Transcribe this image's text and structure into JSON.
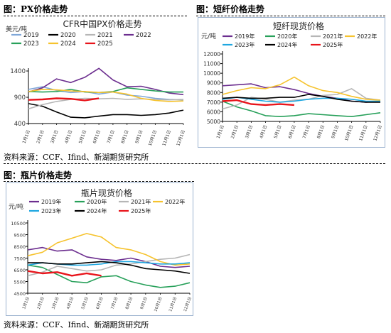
{
  "sections": {
    "px_title": "图：PX价格走势",
    "psf_title": "图：短纤价格走势",
    "bottle_title": "图：瓶片价格走势",
    "source_top": "资料来源：CCF、Ifind、新湖期货研究所",
    "source_bottom": "资料来源：CCF、Ifind、新湖期货研究所"
  },
  "chart_data": [
    {
      "id": "px",
      "type": "line",
      "title": "CFR中国PX价格走势",
      "ylabel": "美元/吨",
      "ylim": [
        400,
        1400
      ],
      "yticks": [
        400,
        900,
        1400
      ],
      "grid": false,
      "legend": "top",
      "x": [
        "1月1日",
        "2月1日",
        "3月1日",
        "4月1日",
        "5月1日",
        "6月1日",
        "7月1日",
        "8月1日",
        "9月1日",
        "10月1日",
        "11月1日",
        "12月1日"
      ],
      "series": [
        {
          "name": "2019",
          "color": "#7fa7d8",
          "values": [
            1050,
            1100,
            1030,
            990,
            1010,
            960,
            1000,
            940,
            920,
            880,
            860,
            850
          ]
        },
        {
          "name": "2020",
          "color": "#000000",
          "values": [
            780,
            730,
            620,
            520,
            510,
            540,
            570,
            570,
            555,
            570,
            600,
            655
          ]
        },
        {
          "name": "2021",
          "color": "#b6b6b6",
          "values": [
            680,
            760,
            820,
            860,
            880,
            870,
            880,
            860,
            870,
            860,
            850,
            860
          ]
        },
        {
          "name": "2022",
          "color": "#6c2e8f",
          "values": [
            1000,
            1080,
            1250,
            1180,
            1280,
            1450,
            1230,
            1100,
            1110,
            1050,
            980,
            950
          ]
        },
        {
          "name": "2023",
          "color": "#27a05a",
          "values": [
            1010,
            1000,
            1010,
            1050,
            1000,
            990,
            1010,
            1080,
            1050,
            1020,
            1000,
            1000
          ]
        },
        {
          "name": "2024",
          "color": "#f6c32e",
          "values": [
            1010,
            1050,
            1040,
            1020,
            1010,
            990,
            1000,
            960,
            880,
            840,
            820,
            830
          ]
        },
        {
          "name": "2025",
          "color": "#e8141b",
          "values": [
            850,
            860,
            880,
            870,
            840,
            880,
            null,
            null,
            null,
            null,
            null,
            null
          ]
        }
      ]
    },
    {
      "id": "psf",
      "type": "line",
      "title": "短纤现货价格",
      "ylabel": "元/吨",
      "ylim": [
        5000,
        12000
      ],
      "yticks": [
        5000,
        6000,
        7000,
        8000,
        9000,
        10000,
        11000,
        12000
      ],
      "grid": false,
      "legend": "top",
      "x": [
        "1月1日",
        "2月1日",
        "3月1日",
        "4月1日",
        "5月1日",
        "6月1日",
        "7月1日",
        "8月1日",
        "9月1日",
        "10月1日",
        "11月1日",
        "12月1日"
      ],
      "series": [
        {
          "name": "2019年",
          "color": "#6c2e8f",
          "values": [
            8700,
            8800,
            8900,
            8500,
            8600,
            8300,
            7900,
            7600,
            7400,
            7100,
            7000,
            7100
          ]
        },
        {
          "name": "2020年",
          "color": "#27a05a",
          "values": [
            7100,
            6500,
            6100,
            5600,
            5500,
            5600,
            5800,
            5700,
            5600,
            5500,
            5700,
            5900
          ]
        },
        {
          "name": "2021年",
          "color": "#b6b6b6",
          "values": [
            6300,
            6700,
            7500,
            7300,
            7000,
            7200,
            7300,
            7700,
            7800,
            8400,
            7400,
            7200
          ]
        },
        {
          "name": "2022年",
          "color": "#f6c32e",
          "values": [
            7800,
            8200,
            8500,
            8400,
            8800,
            9600,
            8700,
            8200,
            8000,
            7600,
            7300,
            7200
          ]
        },
        {
          "name": "2023年",
          "color": "#1fa7e0",
          "values": [
            7300,
            7500,
            7300,
            7100,
            7000,
            7100,
            7300,
            7400,
            7400,
            7300,
            7100,
            7100
          ]
        },
        {
          "name": "2024年",
          "color": "#000000",
          "values": [
            7400,
            7500,
            7400,
            7400,
            7500,
            7500,
            7800,
            7600,
            7300,
            7100,
            7000,
            7000
          ]
        },
        {
          "name": "2025年",
          "color": "#e8141b",
          "values": [
            7100,
            7200,
            6800,
            6700,
            6800,
            6700,
            null,
            null,
            null,
            null,
            null,
            null
          ]
        }
      ]
    },
    {
      "id": "bottle",
      "type": "line",
      "title": "瓶片现货价格",
      "ylabel": "元/吨",
      "ylim": [
        4500,
        10500
      ],
      "yticks": [
        4500,
        5500,
        6500,
        7500,
        8500,
        9500,
        10500
      ],
      "grid": false,
      "legend": "top",
      "x": [
        "1月1日",
        "2月1日",
        "3月1日",
        "4月1日",
        "5月1日",
        "6月1日",
        "7月1日",
        "8月1日",
        "9月1日",
        "10月1日",
        "11月1日",
        "12月1日"
      ],
      "series": [
        {
          "name": "2019年",
          "color": "#6c2e8f",
          "values": [
            8200,
            8400,
            8100,
            8200,
            7600,
            7400,
            7300,
            7500,
            7200,
            6800,
            6700,
            6800
          ]
        },
        {
          "name": "2020年",
          "color": "#27a05a",
          "values": [
            6900,
            6700,
            6100,
            5500,
            5400,
            5900,
            6000,
            5500,
            5200,
            5000,
            5100,
            5400
          ]
        },
        {
          "name": "2021年",
          "color": "#b6b6b6",
          "values": [
            6000,
            6300,
            6800,
            6600,
            6400,
            6500,
            6900,
            7000,
            7200,
            7400,
            7500,
            7800
          ]
        },
        {
          "name": "2022年",
          "color": "#f6c32e",
          "values": [
            7700,
            8000,
            8800,
            9200,
            9600,
            9300,
            8400,
            8200,
            7800,
            7200,
            6900,
            7000
          ]
        },
        {
          "name": "2023年",
          "color": "#1fa7e0",
          "values": [
            6900,
            7100,
            7000,
            6900,
            6900,
            7000,
            7200,
            7200,
            7100,
            7000,
            7000,
            7100
          ]
        },
        {
          "name": "2024年",
          "color": "#000000",
          "values": [
            7100,
            7100,
            7000,
            7000,
            7100,
            7200,
            7100,
            6900,
            6600,
            6500,
            6400,
            6200
          ]
        },
        {
          "name": "2025年",
          "color": "#e8141b",
          "values": [
            6400,
            6200,
            6300,
            6000,
            6200,
            6000,
            null,
            null,
            null,
            null,
            null,
            null
          ]
        }
      ]
    }
  ]
}
